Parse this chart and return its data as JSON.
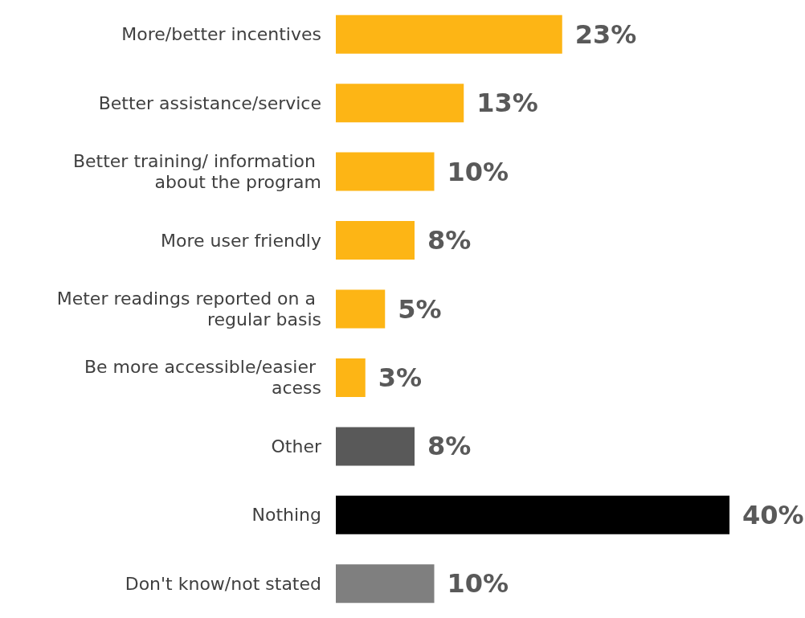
{
  "chart_data": {
    "type": "bar",
    "orientation": "horizontal",
    "categories": [
      "More/better incentives",
      "Better assistance/service",
      "Better training/ information about the program",
      "More user friendly",
      "Meter readings reported on a regular basis",
      "Be more accessible/easier acess",
      "Other",
      "Nothing",
      "Don't know/not stated"
    ],
    "values": [
      23,
      13,
      10,
      8,
      5,
      3,
      8,
      40,
      10
    ],
    "colors": [
      "#fdb515",
      "#fdb515",
      "#fdb515",
      "#fdb515",
      "#fdb515",
      "#fdb515",
      "#595959",
      "#000000",
      "#7f7f7f"
    ],
    "value_labels": [
      "23%",
      "13%",
      "10%",
      "8%",
      "5%",
      "3%",
      "8%",
      "40%",
      "10%"
    ]
  }
}
